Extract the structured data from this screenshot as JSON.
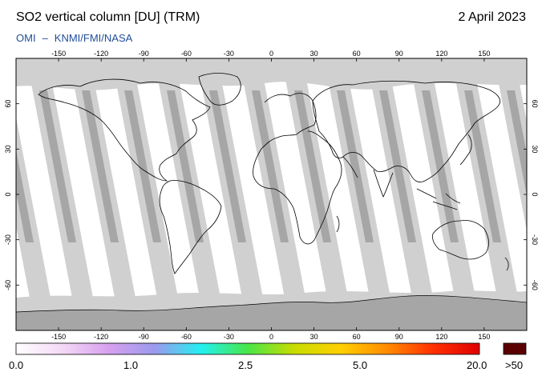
{
  "header": {
    "title": "SO2 vertical column [DU] (TRM)",
    "date": "2 April 2023",
    "source_left": "OMI",
    "source_dash": "–",
    "source_right": "KNMI/FMI/NASA"
  },
  "map": {
    "lon_ticks": [
      -150,
      -120,
      -90,
      -60,
      -30,
      0,
      30,
      60,
      90,
      120,
      150
    ],
    "lat_ticks": [
      60,
      30,
      0,
      -30,
      -60
    ],
    "lon_range": [
      -180,
      180
    ],
    "lat_range": [
      -90,
      90
    ],
    "colors": {
      "ocean": "#ffffff",
      "land_outline": "#000000",
      "orbit_gap_light": "#d0d0d0",
      "orbit_gap_dark": "#a6a6a6",
      "polar_night": "#a3a3a3"
    }
  },
  "colorbar": {
    "labels": [
      "0.0",
      "1.0",
      "2.5",
      "5.0",
      "20.0",
      ">50"
    ],
    "gradient": [
      "#ffffff",
      "#f4d8f6",
      "#d7a0ee",
      "#9a9aee",
      "#22f0f0",
      "#48e648",
      "#c8dc00",
      "#ffd000",
      "#ff8c00",
      "#ff3000",
      "#e00000"
    ],
    "overflow_color": "#5a0000"
  }
}
